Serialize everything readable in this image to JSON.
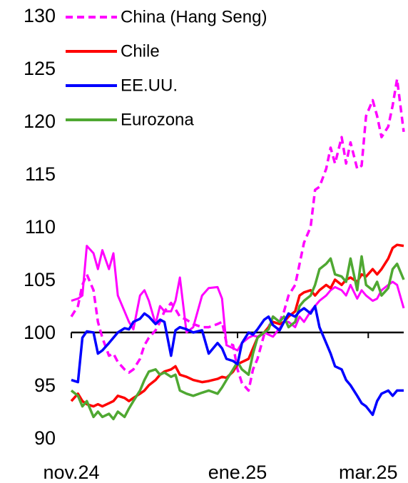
{
  "chart_data": {
    "type": "line",
    "title": "",
    "xlabel": "",
    "ylabel": "",
    "ylim": [
      90,
      130
    ],
    "yticks": [
      90,
      95,
      100,
      105,
      110,
      115,
      120,
      125,
      130
    ],
    "x_range": [
      "2024-11-01",
      "2025-03-31"
    ],
    "xticks": [
      {
        "label": "nov.24",
        "date": "2024-11-01"
      },
      {
        "label": "ene.25",
        "date": "2025-01-15"
      },
      {
        "label": "mar.25",
        "date": "2025-03-15"
      }
    ],
    "grid": false,
    "legend": "top-left",
    "reference_line": {
      "value": 100,
      "start": "2024-11-01",
      "end": "2025-03-31"
    },
    "series": [
      {
        "name": "China (Hang Seng)",
        "color": "#ff00ff",
        "style": "dashed-then-solid",
        "x": [
          "2024-11-01",
          "2024-11-04",
          "2024-11-06",
          "2024-11-08",
          "2024-11-11",
          "2024-11-13",
          "2024-11-15",
          "2024-11-18",
          "2024-11-20",
          "2024-11-22",
          "2024-11-25",
          "2024-11-27",
          "2024-11-29",
          "2024-12-02",
          "2024-12-04",
          "2024-12-06",
          "2024-12-09",
          "2024-12-11",
          "2024-12-13",
          "2024-12-16",
          "2024-12-18",
          "2024-12-20",
          "2024-12-23",
          "2024-12-26",
          "2024-12-30",
          "2025-01-02",
          "2025-01-06",
          "2025-01-08",
          "2025-01-10",
          "2025-01-13",
          "2025-01-15",
          "2025-01-17",
          "2025-01-20",
          "2025-01-22",
          "2025-01-24",
          "2025-01-27",
          "2025-01-29",
          "2025-01-31",
          "2025-02-03",
          "2025-02-05",
          "2025-02-07",
          "2025-02-10",
          "2025-02-12",
          "2025-02-14",
          "2025-02-17",
          "2025-02-19",
          "2025-02-21",
          "2025-02-24",
          "2025-02-26",
          "2025-02-28",
          "2025-03-03",
          "2025-03-05",
          "2025-03-07",
          "2025-03-10",
          "2025-03-12",
          "2025-03-14",
          "2025-03-17",
          "2025-03-19",
          "2025-03-21",
          "2025-03-24",
          "2025-03-26",
          "2025-03-28",
          "2025-03-31"
        ],
        "values": [
          101.5,
          102.5,
          104.5,
          105.5,
          104.0,
          101.0,
          99.5,
          97.8,
          98.0,
          97.2,
          96.5,
          96.2,
          96.5,
          97.5,
          98.8,
          99.5,
          100.2,
          101.0,
          102.0,
          102.8,
          102.2,
          101.5,
          101.2,
          100.8,
          100.5,
          100.5,
          100.8,
          101.0,
          99.0,
          98.8,
          96.5,
          95.2,
          94.5,
          96.5,
          97.5,
          99.8,
          100.5,
          101.5,
          101.0,
          102.0,
          103.5,
          104.5,
          106.5,
          108.5,
          110.0,
          113.5,
          113.8,
          115.5,
          117.5,
          116.0,
          118.5,
          116.0,
          118.0,
          115.5,
          115.8,
          120.5,
          122.0,
          120.5,
          118.5,
          119.5,
          121.5,
          124.0,
          119.0
        ]
      },
      {
        "name": "Chile",
        "color": "#ff0000",
        "style": "solid",
        "x": [
          "2024-11-01",
          "2024-11-04",
          "2024-11-06",
          "2024-11-08",
          "2024-11-11",
          "2024-11-13",
          "2024-11-15",
          "2024-11-18",
          "2024-11-20",
          "2024-11-22",
          "2024-11-25",
          "2024-11-27",
          "2024-11-29",
          "2024-12-02",
          "2024-12-04",
          "2024-12-06",
          "2024-12-09",
          "2024-12-11",
          "2024-12-13",
          "2024-12-16",
          "2024-12-18",
          "2024-12-20",
          "2024-12-23",
          "2024-12-26",
          "2024-12-30",
          "2025-01-02",
          "2025-01-06",
          "2025-01-08",
          "2025-01-10",
          "2025-01-13",
          "2025-01-15",
          "2025-01-17",
          "2025-01-20",
          "2025-01-22",
          "2025-01-24",
          "2025-01-27",
          "2025-01-29",
          "2025-01-31",
          "2025-02-03",
          "2025-02-05",
          "2025-02-07",
          "2025-02-10",
          "2025-02-12",
          "2025-02-14",
          "2025-02-17",
          "2025-02-19",
          "2025-02-21",
          "2025-02-24",
          "2025-02-26",
          "2025-02-28",
          "2025-03-03",
          "2025-03-05",
          "2025-03-07",
          "2025-03-10",
          "2025-03-12",
          "2025-03-14",
          "2025-03-17",
          "2025-03-19",
          "2025-03-21",
          "2025-03-24",
          "2025-03-26",
          "2025-03-28",
          "2025-03-31"
        ],
        "values": [
          93.5,
          94.2,
          93.5,
          93.2,
          93.0,
          93.2,
          93.0,
          93.3,
          93.5,
          94.0,
          93.8,
          93.5,
          93.8,
          94.2,
          94.5,
          95.0,
          95.5,
          96.0,
          96.3,
          96.5,
          96.8,
          96.0,
          95.8,
          95.5,
          95.3,
          95.4,
          95.6,
          95.8,
          95.7,
          96.3,
          97.0,
          97.2,
          97.5,
          98.5,
          99.5,
          100.0,
          100.5,
          101.0,
          100.8,
          101.0,
          101.5,
          102.0,
          103.5,
          103.8,
          104.0,
          103.5,
          104.0,
          104.5,
          104.2,
          105.0,
          104.5,
          105.0,
          105.2,
          104.8,
          105.5,
          105.3,
          106.0,
          105.5,
          106.0,
          107.0,
          108.0,
          108.3,
          108.2
        ]
      },
      {
        "name": "EE.UU.",
        "color": "#0000ff",
        "style": "solid",
        "x": [
          "2024-11-01",
          "2024-11-04",
          "2024-11-06",
          "2024-11-08",
          "2024-11-11",
          "2024-11-13",
          "2024-11-15",
          "2024-11-18",
          "2024-11-20",
          "2024-11-22",
          "2024-11-25",
          "2024-11-27",
          "2024-11-29",
          "2024-12-02",
          "2024-12-04",
          "2024-12-06",
          "2024-12-09",
          "2024-12-11",
          "2024-12-13",
          "2024-12-16",
          "2024-12-18",
          "2024-12-20",
          "2024-12-23",
          "2024-12-26",
          "2024-12-30",
          "2025-01-02",
          "2025-01-06",
          "2025-01-08",
          "2025-01-10",
          "2025-01-13",
          "2025-01-15",
          "2025-01-17",
          "2025-01-20",
          "2025-01-22",
          "2025-01-24",
          "2025-01-27",
          "2025-01-29",
          "2025-01-31",
          "2025-02-03",
          "2025-02-05",
          "2025-02-07",
          "2025-02-10",
          "2025-02-12",
          "2025-02-14",
          "2025-02-17",
          "2025-02-19",
          "2025-02-21",
          "2025-02-24",
          "2025-02-26",
          "2025-02-28",
          "2025-03-03",
          "2025-03-05",
          "2025-03-07",
          "2025-03-10",
          "2025-03-12",
          "2025-03-14",
          "2025-03-17",
          "2025-03-19",
          "2025-03-21",
          "2025-03-24",
          "2025-03-26",
          "2025-03-28",
          "2025-03-31"
        ],
        "values": [
          95.5,
          95.3,
          99.5,
          100.1,
          100.0,
          98.0,
          98.3,
          99.0,
          99.5,
          100.0,
          100.4,
          100.3,
          101.0,
          101.3,
          101.8,
          101.5,
          100.8,
          101.2,
          101.0,
          97.8,
          100.2,
          100.5,
          100.3,
          100.0,
          100.2,
          98.0,
          99.0,
          98.5,
          97.5,
          97.3,
          97.0,
          99.0,
          100.0,
          99.8,
          100.3,
          101.2,
          101.5,
          100.7,
          100.2,
          101.0,
          101.8,
          101.5,
          102.0,
          102.3,
          101.8,
          102.5,
          100.5,
          99.0,
          98.0,
          96.8,
          96.5,
          95.5,
          95.0,
          94.0,
          93.3,
          93.0,
          92.2,
          93.5,
          94.2,
          94.5,
          94.0,
          94.5,
          94.5
        ]
      },
      {
        "name": "Eurozona",
        "color": "#4fa832",
        "style": "solid",
        "x": [
          "2024-11-01",
          "2024-11-04",
          "2024-11-06",
          "2024-11-08",
          "2024-11-11",
          "2024-11-13",
          "2024-11-15",
          "2024-11-18",
          "2024-11-20",
          "2024-11-22",
          "2024-11-25",
          "2024-11-27",
          "2024-11-29",
          "2024-12-02",
          "2024-12-04",
          "2024-12-06",
          "2024-12-09",
          "2024-12-11",
          "2024-12-13",
          "2024-12-16",
          "2024-12-18",
          "2024-12-20",
          "2024-12-23",
          "2024-12-26",
          "2024-12-30",
          "2025-01-02",
          "2025-01-06",
          "2025-01-08",
          "2025-01-10",
          "2025-01-13",
          "2025-01-15",
          "2025-01-17",
          "2025-01-20",
          "2025-01-22",
          "2025-01-24",
          "2025-01-27",
          "2025-01-29",
          "2025-01-31",
          "2025-02-03",
          "2025-02-05",
          "2025-02-07",
          "2025-02-10",
          "2025-02-12",
          "2025-02-14",
          "2025-02-17",
          "2025-02-19",
          "2025-02-21",
          "2025-02-24",
          "2025-02-26",
          "2025-02-28",
          "2025-03-03",
          "2025-03-05",
          "2025-03-07",
          "2025-03-10",
          "2025-03-12",
          "2025-03-14",
          "2025-03-17",
          "2025-03-19",
          "2025-03-21",
          "2025-03-24",
          "2025-03-26",
          "2025-03-28",
          "2025-03-31"
        ],
        "values": [
          94.5,
          94.0,
          93.0,
          93.5,
          92.0,
          92.5,
          92.0,
          92.3,
          91.8,
          92.5,
          92.0,
          92.8,
          93.5,
          94.5,
          95.5,
          96.3,
          96.5,
          96.0,
          96.2,
          95.8,
          96.0,
          94.5,
          94.2,
          94.0,
          94.3,
          94.5,
          94.2,
          94.8,
          95.5,
          96.5,
          97.2,
          96.5,
          96.0,
          98.0,
          99.5,
          100.0,
          100.3,
          101.5,
          101.0,
          101.5,
          100.5,
          101.0,
          102.5,
          103.0,
          103.5,
          104.5,
          106.0,
          106.5,
          107.0,
          105.5,
          105.3,
          104.8,
          107.0,
          104.0,
          107.2,
          104.5,
          104.0,
          104.8,
          103.5,
          104.2,
          106.0,
          106.5,
          105.0
        ]
      }
    ]
  }
}
